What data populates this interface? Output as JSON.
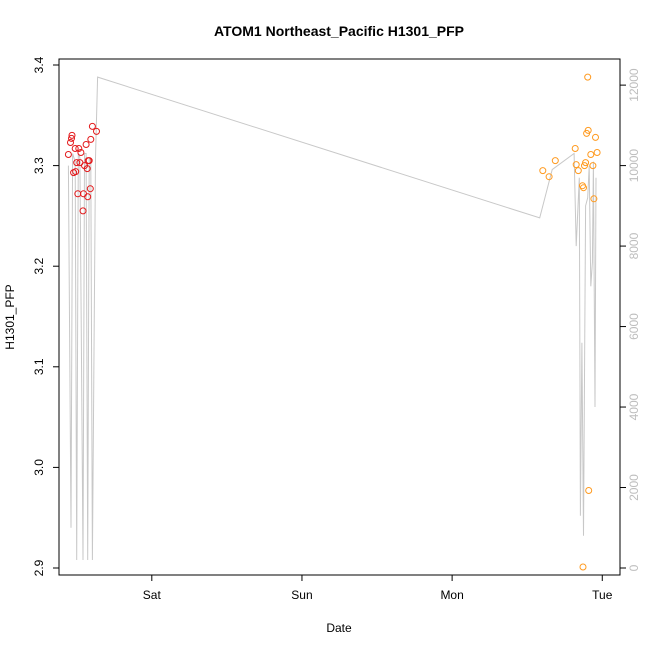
{
  "chart_data": {
    "type": "scatter",
    "title": "ATOM1 Northeast_Pacific H1301_PFP",
    "xlabel": "Date",
    "ylabel": "H1301_PFP",
    "x_ticks": [
      {
        "t": "2016-08-20T00:00",
        "label": "Sat"
      },
      {
        "t": "2016-08-21T00:00",
        "label": "Sun"
      },
      {
        "t": "2016-08-22T00:00",
        "label": "Mon"
      },
      {
        "t": "2016-08-23T00:00",
        "label": "Tue"
      }
    ],
    "xlim": [
      "2016-08-19T09:10",
      "2016-08-23T02:50"
    ],
    "ylim": [
      2.9,
      3.4
    ],
    "y_ticks": [
      2.9,
      3.0,
      3.1,
      3.2,
      3.3,
      3.4
    ],
    "y2lim": [
      0,
      12500
    ],
    "y2_ticks": [
      0,
      2000,
      4000,
      6000,
      8000,
      10000,
      12000
    ],
    "grid": false,
    "colors": {
      "series_red": "#e31a1c",
      "series_orange": "#ff9a1f",
      "altitude_line": "#c8c8c8"
    },
    "series": [
      {
        "color": "#e31a1c",
        "points": [
          {
            "t": "2016-08-19T10:40",
            "y": 3.311
          },
          {
            "t": "2016-08-19T11:00",
            "y": 3.323
          },
          {
            "t": "2016-08-19T11:10",
            "y": 3.327
          },
          {
            "t": "2016-08-19T11:15",
            "y": 3.33
          },
          {
            "t": "2016-08-19T11:30",
            "y": 3.293
          },
          {
            "t": "2016-08-19T11:45",
            "y": 3.317
          },
          {
            "t": "2016-08-19T11:50",
            "y": 3.294
          },
          {
            "t": "2016-08-19T12:00",
            "y": 3.303
          },
          {
            "t": "2016-08-19T12:10",
            "y": 3.272
          },
          {
            "t": "2016-08-19T12:20",
            "y": 3.317
          },
          {
            "t": "2016-08-19T12:30",
            "y": 3.303
          },
          {
            "t": "2016-08-19T12:40",
            "y": 3.313
          },
          {
            "t": "2016-08-19T13:00",
            "y": 3.255
          },
          {
            "t": "2016-08-19T13:05",
            "y": 3.272
          },
          {
            "t": "2016-08-19T13:15",
            "y": 3.3
          },
          {
            "t": "2016-08-19T13:30",
            "y": 3.321
          },
          {
            "t": "2016-08-19T13:40",
            "y": 3.297
          },
          {
            "t": "2016-08-19T13:45",
            "y": 3.269
          },
          {
            "t": "2016-08-19T13:50",
            "y": 3.305
          },
          {
            "t": "2016-08-19T14:00",
            "y": 3.305
          },
          {
            "t": "2016-08-19T14:10",
            "y": 3.277
          },
          {
            "t": "2016-08-19T14:15",
            "y": 3.326
          },
          {
            "t": "2016-08-19T14:30",
            "y": 3.339
          },
          {
            "t": "2016-08-19T15:10",
            "y": 3.334
          }
        ]
      },
      {
        "color": "#ff9a1f",
        "points": [
          {
            "t": "2016-08-22T14:30",
            "y": 3.295
          },
          {
            "t": "2016-08-22T15:30",
            "y": 3.289
          },
          {
            "t": "2016-08-22T16:30",
            "y": 3.305
          },
          {
            "t": "2016-08-22T19:40",
            "y": 3.317
          },
          {
            "t": "2016-08-22T19:50",
            "y": 3.301
          },
          {
            "t": "2016-08-22T20:10",
            "y": 3.295
          },
          {
            "t": "2016-08-22T20:50",
            "y": 3.28
          },
          {
            "t": "2016-08-22T20:55",
            "y": 2.901
          },
          {
            "t": "2016-08-22T21:00",
            "y": 3.278
          },
          {
            "t": "2016-08-22T21:10",
            "y": 3.3
          },
          {
            "t": "2016-08-22T21:20",
            "y": 3.303
          },
          {
            "t": "2016-08-22T21:30",
            "y": 3.332
          },
          {
            "t": "2016-08-22T21:40",
            "y": 3.388
          },
          {
            "t": "2016-08-22T21:45",
            "y": 3.335
          },
          {
            "t": "2016-08-22T21:50",
            "y": 2.977
          },
          {
            "t": "2016-08-22T22:10",
            "y": 3.311
          },
          {
            "t": "2016-08-22T22:30",
            "y": 3.3
          },
          {
            "t": "2016-08-22T22:40",
            "y": 3.267
          },
          {
            "t": "2016-08-22T22:55",
            "y": 3.328
          },
          {
            "t": "2016-08-22T23:10",
            "y": 3.313
          }
        ]
      }
    ],
    "altitude_line": [
      {
        "t": "2016-08-19T10:40",
        "y2": 10000
      },
      {
        "t": "2016-08-19T11:05",
        "y2": 1000
      },
      {
        "t": "2016-08-19T11:20",
        "y2": 10300
      },
      {
        "t": "2016-08-19T11:45",
        "y2": 10100
      },
      {
        "t": "2016-08-19T12:00",
        "y2": 200
      },
      {
        "t": "2016-08-19T12:15",
        "y2": 10300
      },
      {
        "t": "2016-08-19T12:30",
        "y2": 10200
      },
      {
        "t": "2016-08-19T12:45",
        "y2": 5500
      },
      {
        "t": "2016-08-19T13:00",
        "y2": 200
      },
      {
        "t": "2016-08-19T13:15",
        "y2": 10300
      },
      {
        "t": "2016-08-19T13:30",
        "y2": 10300
      },
      {
        "t": "2016-08-19T13:45",
        "y2": 200
      },
      {
        "t": "2016-08-19T14:00",
        "y2": 10200
      },
      {
        "t": "2016-08-19T14:15",
        "y2": 10100
      },
      {
        "t": "2016-08-19T14:30",
        "y2": 200
      },
      {
        "t": "2016-08-19T15:00",
        "y2": 10200
      },
      {
        "t": "2016-08-19T15:20",
        "y2": 12200
      },
      {
        "t": "2016-08-22T14:00",
        "y2": 8700
      },
      {
        "t": "2016-08-22T16:00",
        "y2": 9900
      },
      {
        "t": "2016-08-22T19:30",
        "y2": 10300
      },
      {
        "t": "2016-08-22T19:50",
        "y2": 8000
      },
      {
        "t": "2016-08-22T20:20",
        "y2": 9700
      },
      {
        "t": "2016-08-22T20:30",
        "y2": 1300
      },
      {
        "t": "2016-08-22T20:45",
        "y2": 5600
      },
      {
        "t": "2016-08-22T21:00",
        "y2": 800
      },
      {
        "t": "2016-08-22T21:20",
        "y2": 9000
      },
      {
        "t": "2016-08-22T21:40",
        "y2": 9200
      },
      {
        "t": "2016-08-22T21:55",
        "y2": 10000
      },
      {
        "t": "2016-08-22T22:10",
        "y2": 7000
      },
      {
        "t": "2016-08-22T22:25",
        "y2": 7600
      },
      {
        "t": "2016-08-22T22:35",
        "y2": 10100
      },
      {
        "t": "2016-08-22T22:50",
        "y2": 4000
      },
      {
        "t": "2016-08-22T23:00",
        "y2": 9700
      }
    ]
  }
}
